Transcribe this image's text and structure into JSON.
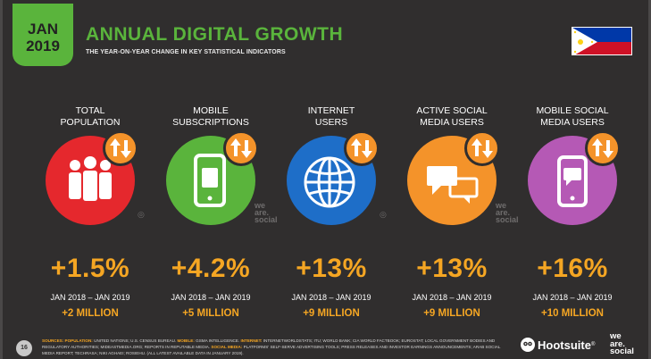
{
  "header": {
    "month": "JAN",
    "year": "2019",
    "title": "ANNUAL DIGITAL GROWTH",
    "subtitle": "THE YEAR-ON-YEAR CHANGE IN KEY STATISTICAL INDICATORS",
    "flag_icon": "philippines-flag-icon"
  },
  "indicators": [
    {
      "label_1": "TOTAL",
      "label_2": "POPULATION",
      "color": "#e5282d",
      "icon": "people-icon",
      "change": "+1.5%",
      "range": "JAN 2018 – JAN 2019",
      "absolute": "+2 MILLION"
    },
    {
      "label_1": "MOBILE",
      "label_2": "SUBSCRIPTIONS",
      "color": "#5ab43c",
      "icon": "mobile-sim-icon",
      "change": "+4.2%",
      "range": "JAN 2018 – JAN 2019",
      "absolute": "+5 MILLION"
    },
    {
      "label_1": "INTERNET",
      "label_2": "USERS",
      "color": "#1e6ec8",
      "icon": "globe-icon",
      "change": "+13%",
      "range": "JAN 2018 – JAN 2019",
      "absolute": "+9 MILLION"
    },
    {
      "label_1": "ACTIVE SOCIAL",
      "label_2": "MEDIA USERS",
      "color": "#f4932a",
      "icon": "speech-bubbles-icon",
      "change": "+13%",
      "range": "JAN 2018 – JAN 2019",
      "absolute": "+9 MILLION"
    },
    {
      "label_1": "MOBILE SOCIAL",
      "label_2": "MEDIA USERS",
      "color": "#b559b5",
      "icon": "mobile-chat-icon",
      "change": "+16%",
      "range": "JAN 2018 – JAN 2019",
      "absolute": "+10 MILLION"
    }
  ],
  "colors": {
    "badge": "#f4932a",
    "highlight": "#f5a623",
    "brand_green": "#5ab43c"
  },
  "watermark": {
    "line1": "we",
    "line2": "are.",
    "line3": "social"
  },
  "footer": {
    "page_number": "16",
    "sources_label": "SOURCES:",
    "sources_text_1": "POPULATION:",
    "sources_text_1b": "UNITED NATIONS; U.S. CENSUS BUREAU.",
    "sources_text_2": "MOBILE:",
    "sources_text_2b": "GSMA INTELLIGENCE.",
    "sources_text_3": "INTERNET:",
    "sources_text_3b": "INTERNETWORLDSTATS; ITU; WORLD BANK; CIA WORLD FACTBOOK; EUROSTAT; LOCAL GOVERNMENT BODIES AND REGULATORY AUTHORITIES; MIDEASTMEDIA.ORG; REPORTS IN REPUTABLE MEDIA.",
    "sources_text_4": "SOCIAL MEDIA:",
    "sources_text_4b": "PLATFORMS' SELF-SERVE ADVERTISING TOOLS; PRESS RELEASES AND INVESTOR EARNINGS ANNOUNCEMENTS; ARAB SOCIAL MEDIA REPORT; TECHRASA; NIKI AGHAEI; ROSIEHU. (ALL LATEST AVAILABLE DATA IN JANUARY 2019).",
    "brand": "Hootsuite",
    "brand_superscript": "®",
    "partner_line1": "we",
    "partner_line2": "are.",
    "partner_line3": "social"
  }
}
